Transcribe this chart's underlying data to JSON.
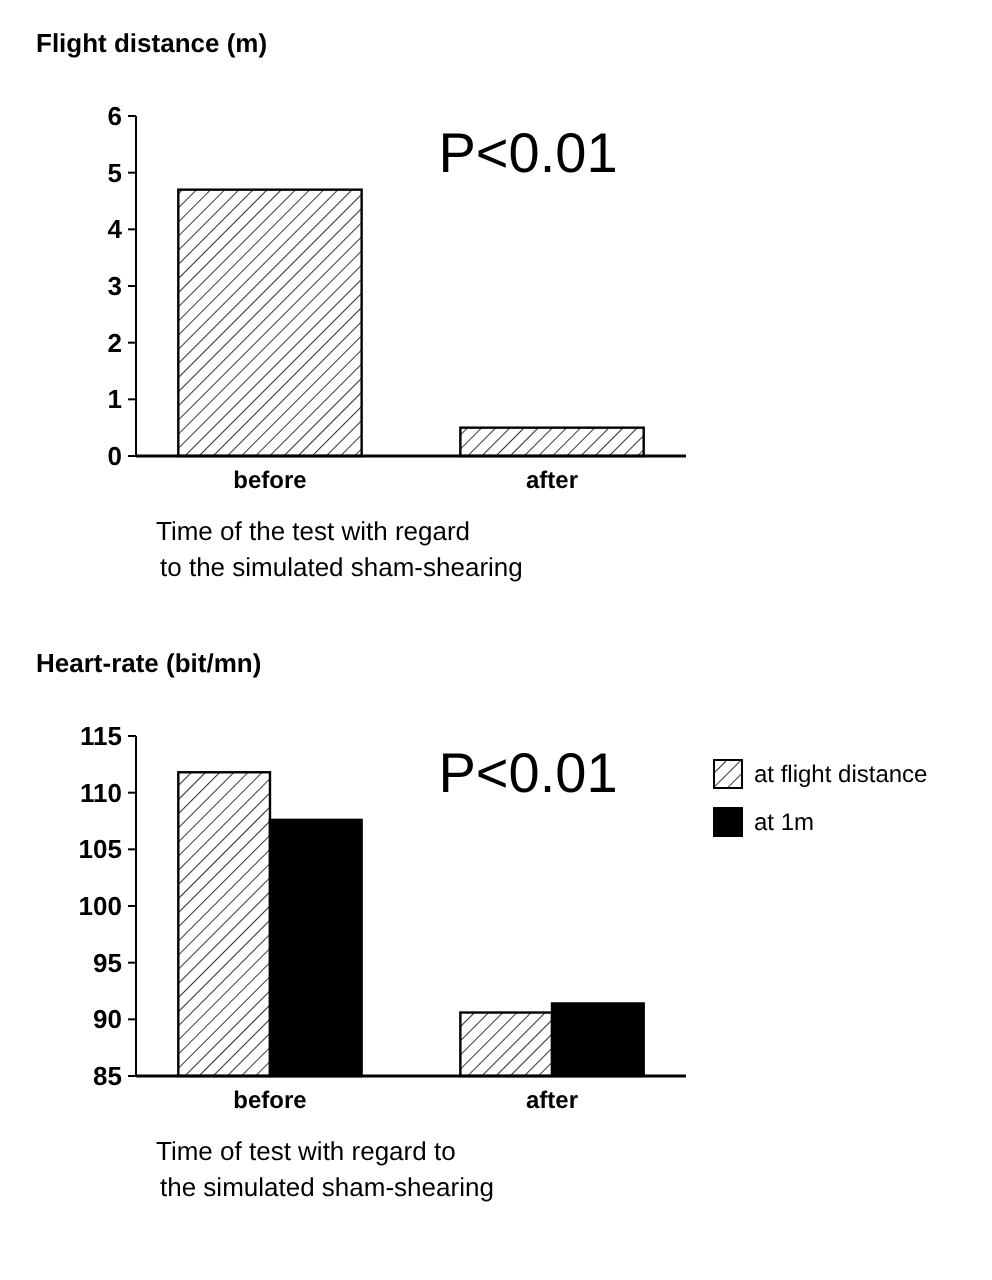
{
  "chart_data": [
    {
      "type": "bar",
      "ylabel": "Flight distance (m)",
      "xlabel": "Time of the test with regard\nto the simulated sham-shearing",
      "categories": [
        "before",
        "after"
      ],
      "series": [
        {
          "color": "#000000",
          "values": [
            4.7,
            0.5
          ]
        }
      ],
      "ylim": [
        0,
        6
      ],
      "yticks": [
        0,
        1,
        2,
        3,
        4,
        5,
        6
      ],
      "annotations": [
        "P<0.01"
      ],
      "legend": false
    },
    {
      "type": "bar",
      "ylabel": "Heart-rate (bit/mn)",
      "xlabel": "Time of test with regard to\nthe simulated sham-shearing",
      "categories": [
        "before",
        "after"
      ],
      "series": [
        {
          "name": "at flight distance",
          "color": "#000000",
          "values": [
            111.8,
            90.6
          ]
        },
        {
          "name": "at 1m",
          "color": "#000000",
          "values": [
            107.6,
            91.4
          ]
        }
      ],
      "ylim": [
        85,
        115
      ],
      "yticks": [
        85,
        90,
        95,
        100,
        105,
        110,
        115
      ],
      "annotations": [
        "P<0.01"
      ],
      "legend": "right"
    }
  ]
}
